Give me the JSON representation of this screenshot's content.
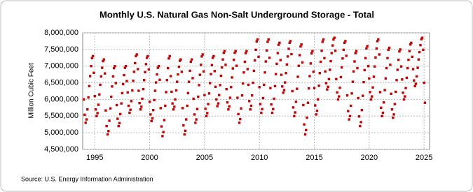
{
  "chart_data": {
    "type": "scatter",
    "title": "Monthly U.S. Natural Gas Non-Salt Underground Storage - Total",
    "y_label": "Million Cubic Feet",
    "source": "Source: U.S. Energy Information Administration",
    "color": "#cc0000",
    "grid": true,
    "xlim": [
      1993.9,
      2025.5
    ],
    "xticks": [
      1995,
      2000,
      2005,
      2010,
      2015,
      2020,
      2025
    ],
    "ylim": [
      4500000,
      8000000
    ],
    "yticks": [
      {
        "value": 4500000,
        "label": "4,500,000"
      },
      {
        "value": 5000000,
        "label": "5,000,000"
      },
      {
        "value": 5500000,
        "label": "5,500,000"
      },
      {
        "value": 6000000,
        "label": "6,000,000"
      },
      {
        "value": 6500000,
        "label": "6,500,000"
      },
      {
        "value": 7000000,
        "label": "7,000,000"
      },
      {
        "value": 7500000,
        "label": "7,500,000"
      },
      {
        "value": 8000000,
        "label": "8,000,000"
      }
    ],
    "x": [
      1994.0,
      1994.08,
      1994.17,
      1994.25,
      1994.33,
      1994.42,
      1994.5,
      1994.58,
      1994.67,
      1994.75,
      1994.83,
      1994.92,
      1995.0,
      1995.08,
      1995.17,
      1995.25,
      1995.33,
      1995.42,
      1995.5,
      1995.58,
      1995.67,
      1995.75,
      1995.83,
      1995.92,
      1996.0,
      1996.08,
      1996.17,
      1996.25,
      1996.33,
      1996.42,
      1996.5,
      1996.58,
      1996.67,
      1996.75,
      1996.83,
      1996.92,
      1997.0,
      1997.08,
      1997.17,
      1997.25,
      1997.33,
      1997.42,
      1997.5,
      1997.58,
      1997.67,
      1997.75,
      1997.83,
      1997.92,
      1998.0,
      1998.08,
      1998.17,
      1998.25,
      1998.33,
      1998.42,
      1998.5,
      1998.58,
      1998.67,
      1998.75,
      1998.83,
      1998.92,
      1999.0,
      1999.08,
      1999.17,
      1999.25,
      1999.33,
      1999.42,
      1999.5,
      1999.58,
      1999.67,
      1999.75,
      1999.83,
      1999.92,
      2000.0,
      2000.08,
      2000.17,
      2000.25,
      2000.33,
      2000.42,
      2000.5,
      2000.58,
      2000.67,
      2000.75,
      2000.83,
      2000.92,
      2001.0,
      2001.08,
      2001.17,
      2001.25,
      2001.33,
      2001.42,
      2001.5,
      2001.58,
      2001.67,
      2001.75,
      2001.83,
      2001.92,
      2002.0,
      2002.08,
      2002.17,
      2002.25,
      2002.33,
      2002.42,
      2002.5,
      2002.58,
      2002.67,
      2002.75,
      2002.83,
      2002.92,
      2003.0,
      2003.08,
      2003.17,
      2003.25,
      2003.33,
      2003.42,
      2003.5,
      2003.58,
      2003.67,
      2003.75,
      2003.83,
      2003.92,
      2004.0,
      2004.08,
      2004.17,
      2004.25,
      2004.33,
      2004.42,
      2004.5,
      2004.58,
      2004.67,
      2004.75,
      2004.83,
      2004.92,
      2005.0,
      2005.08,
      2005.17,
      2005.25,
      2005.33,
      2005.42,
      2005.5,
      2005.58,
      2005.67,
      2005.75,
      2005.83,
      2005.92,
      2006.0,
      2006.08,
      2006.17,
      2006.25,
      2006.33,
      2006.42,
      2006.5,
      2006.58,
      2006.67,
      2006.75,
      2006.83,
      2006.92,
      2007.0,
      2007.08,
      2007.17,
      2007.25,
      2007.33,
      2007.42,
      2007.5,
      2007.58,
      2007.67,
      2007.75,
      2007.83,
      2007.92,
      2008.0,
      2008.08,
      2008.17,
      2008.25,
      2008.33,
      2008.42,
      2008.5,
      2008.58,
      2008.67,
      2008.75,
      2008.83,
      2008.92,
      2009.0,
      2009.08,
      2009.17,
      2009.25,
      2009.33,
      2009.42,
      2009.5,
      2009.58,
      2009.67,
      2009.75,
      2009.83,
      2009.92,
      2010.0,
      2010.08,
      2010.17,
      2010.25,
      2010.33,
      2010.42,
      2010.5,
      2010.58,
      2010.67,
      2010.75,
      2010.83,
      2010.92,
      2011.0,
      2011.08,
      2011.17,
      2011.25,
      2011.33,
      2011.42,
      2011.5,
      2011.58,
      2011.67,
      2011.75,
      2011.83,
      2011.92,
      2012.0,
      2012.08,
      2012.17,
      2012.25,
      2012.33,
      2012.42,
      2012.5,
      2012.58,
      2012.67,
      2012.75,
      2012.83,
      2012.92,
      2013.0,
      2013.08,
      2013.17,
      2013.25,
      2013.33,
      2013.42,
      2013.5,
      2013.58,
      2013.67,
      2013.75,
      2013.83,
      2013.92,
      2014.0,
      2014.08,
      2014.17,
      2014.25,
      2014.33,
      2014.42,
      2014.5,
      2014.58,
      2014.67,
      2014.75,
      2014.83,
      2014.92,
      2015.0,
      2015.08,
      2015.17,
      2015.25,
      2015.33,
      2015.42,
      2015.5,
      2015.58,
      2015.67,
      2015.75,
      2015.83,
      2015.92,
      2016.0,
      2016.08,
      2016.17,
      2016.25,
      2016.33,
      2016.42,
      2016.5,
      2016.58,
      2016.67,
      2016.75,
      2016.83,
      2016.92,
      2017.0,
      2017.08,
      2017.17,
      2017.25,
      2017.33,
      2017.42,
      2017.5,
      2017.58,
      2017.67,
      2017.75,
      2017.83,
      2017.92,
      2018.0,
      2018.08,
      2018.17,
      2018.25,
      2018.33,
      2018.42,
      2018.5,
      2018.58,
      2018.67,
      2018.75,
      2018.83,
      2018.92,
      2019.0,
      2019.08,
      2019.17,
      2019.25,
      2019.33,
      2019.42,
      2019.5,
      2019.58,
      2019.67,
      2019.75,
      2019.83,
      2019.92,
      2020.0,
      2020.08,
      2020.17,
      2020.25,
      2020.33,
      2020.42,
      2020.5,
      2020.58,
      2020.67,
      2020.75,
      2020.83,
      2020.92,
      2021.0,
      2021.08,
      2021.17,
      2021.25,
      2021.33,
      2021.42,
      2021.5,
      2021.58,
      2021.67,
      2021.75,
      2021.83,
      2021.92,
      2022.0,
      2022.08,
      2022.17,
      2022.25,
      2022.33,
      2022.42,
      2022.5,
      2022.58,
      2022.67,
      2022.75,
      2022.83,
      2022.92,
      2023.0,
      2023.08,
      2023.17,
      2023.25,
      2023.33,
      2023.42,
      2023.5,
      2023.58,
      2023.67,
      2023.75,
      2023.83,
      2023.92,
      2024.0,
      2024.08,
      2024.17,
      2024.25,
      2024.33,
      2024.42,
      2024.5,
      2024.58,
      2024.67,
      2024.75,
      2024.83,
      2024.92,
      2025.0,
      2025.08
    ],
    "values": [
      6000000,
      5540000,
      5300000,
      5400000,
      5700000,
      6060000,
      6400000,
      6700000,
      7000000,
      7240000,
      7300000,
      6800000,
      6100000,
      5700000,
      5500000,
      5590000,
      5840000,
      6150000,
      6440000,
      6690000,
      6950000,
      7150000,
      7200000,
      6780000,
      5670000,
      5200000,
      4950000,
      5050000,
      5360000,
      5730000,
      6080000,
      6390000,
      6690000,
      6940000,
      7000000,
      6490000,
      5830000,
      5420000,
      5200000,
      5290000,
      5560000,
      5880000,
      6190000,
      6460000,
      6730000,
      6950000,
      7000000,
      6550000,
      6210000,
      5810000,
      5600000,
      5690000,
      5950000,
      6270000,
      6560000,
      6830000,
      7090000,
      7300000,
      7350000,
      6910000,
      6260000,
      5890000,
      5700000,
      5780000,
      6020000,
      6310000,
      6580000,
      6820000,
      7060000,
      7250000,
      7300000,
      6900000,
      5930000,
      5550000,
      5350000,
      5430000,
      5680000,
      5980000,
      6260000,
      6510000,
      6750000,
      6950000,
      7000000,
      6590000,
      5740000,
      5190000,
      4900000,
      5020000,
      5380000,
      5810000,
      6220000,
      6580000,
      6940000,
      7230000,
      7300000,
      6700000,
      6230000,
      5880000,
      5700000,
      5780000,
      6000000,
      6270000,
      6530000,
      6750000,
      6980000,
      7160000,
      7200000,
      6830000,
      5740000,
      5220000,
      4950000,
      5060000,
      5400000,
      5810000,
      6190000,
      6530000,
      6860000,
      7130000,
      7200000,
      6640000,
      6020000,
      5550000,
      5300000,
      5400000,
      5710000,
      6080000,
      6430000,
      6740000,
      7040000,
      7290000,
      7350000,
      6840000,
      6130000,
      5720000,
      5500000,
      5590000,
      5860000,
      6180000,
      6490000,
      6760000,
      7030000,
      7250000,
      7300000,
      6850000,
      6380000,
      6000000,
      5800000,
      5880000,
      6130000,
      6430000,
      6710000,
      6960000,
      7200000,
      7400000,
      7450000,
      7040000,
      6310000,
      5910000,
      5700000,
      5790000,
      6050000,
      6370000,
      6660000,
      6930000,
      7190000,
      7400000,
      7450000,
      7010000,
      6050000,
      5560000,
      5300000,
      5410000,
      5730000,
      6120000,
      6480000,
      6810000,
      7130000,
      7390000,
      7450000,
      6910000,
      6440000,
      5950000,
      5700000,
      5810000,
      6120000,
      6500000,
      6860000,
      7170000,
      7490000,
      7740000,
      7800000,
      7280000,
      6370000,
      5860000,
      5600000,
      5710000,
      6040000,
      6440000,
      6810000,
      7140000,
      7470000,
      7730000,
      7800000,
      7250000,
      6340000,
      5850000,
      5600000,
      5710000,
      6020000,
      6400000,
      6760000,
      7070000,
      7390000,
      7640000,
      7700000,
      7180000,
      6740000,
      6390000,
      6200000,
      6280000,
      6510000,
      6790000,
      7050000,
      7290000,
      7520000,
      7700000,
      7750000,
      7360000,
      6250000,
      5760000,
      5500000,
      5610000,
      5930000,
      6320000,
      6680000,
      7010000,
      7330000,
      7590000,
      7650000,
      7110000,
      5830000,
      5250000,
      4950000,
      5080000,
      5450000,
      5900000,
      6330000,
      6700000,
      7080000,
      7380000,
      7450000,
      6830000,
      6340000,
      5820000,
      5550000,
      5660000,
      6000000,
      6410000,
      6790000,
      7130000,
      7460000,
      7730000,
      7800000,
      7240000,
      6840000,
      6490000,
      6300000,
      6380000,
      6610000,
      6890000,
      7150000,
      7390000,
      7620000,
      7800000,
      7850000,
      7460000,
      6610000,
      6210000,
      6000000,
      6090000,
      6350000,
      6670000,
      6960000,
      7230000,
      7490000,
      7700000,
      7750000,
      7310000,
      6120000,
      5650000,
      5400000,
      5500000,
      5810000,
      6180000,
      6530000,
      6840000,
      7140000,
      7390000,
      7450000,
      6940000,
      6040000,
      5490000,
      5200000,
      5320000,
      5680000,
      6110000,
      6520000,
      6880000,
      7240000,
      7530000,
      7600000,
      7000000,
      6630000,
      6220000,
      6000000,
      6090000,
      6360000,
      6680000,
      6990000,
      7260000,
      7530000,
      7750000,
      7800000,
      7350000,
      6220000,
      5750000,
      5500000,
      5600000,
      5910000,
      6280000,
      6630000,
      6940000,
      7240000,
      7490000,
      7550000,
      7040000,
      6170000,
      5700000,
      5450000,
      5550000,
      5860000,
      6230000,
      6580000,
      6890000,
      7190000,
      7440000,
      7500000,
      6990000,
      6600000,
      6200000,
      6000000,
      6090000,
      6340000,
      6650000,
      6940000,
      7190000,
      7450000,
      7650000,
      7700000,
      7280000,
      6910000,
      6570000,
      6400000,
      6470000,
      6690000,
      6950000,
      7200000,
      7420000,
      7630000,
      7810000,
      7850000,
      7490000,
      6500000,
      5900000
    ]
  }
}
